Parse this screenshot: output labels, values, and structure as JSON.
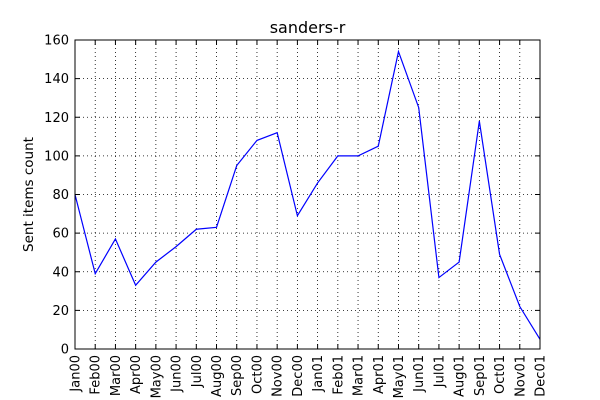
{
  "chart_data": {
    "type": "line",
    "title": "sanders-r",
    "xlabel": "",
    "ylabel": "Sent items count",
    "ylim": [
      0,
      160
    ],
    "yticks": [
      0,
      20,
      40,
      60,
      80,
      100,
      120,
      140,
      160
    ],
    "categories": [
      "Jan00",
      "Feb00",
      "Mar00",
      "Apr00",
      "May00",
      "Jun00",
      "Jul00",
      "Aug00",
      "Sep00",
      "Oct00",
      "Nov00",
      "Dec00",
      "Jan01",
      "Feb01",
      "Mar01",
      "Apr01",
      "May01",
      "Jun01",
      "Jul01",
      "Aug01",
      "Sep01",
      "Oct01",
      "Nov01",
      "Dec01"
    ],
    "series": [
      {
        "values": [
          80,
          39,
          57,
          33,
          45,
          53,
          62,
          63,
          95,
          108,
          112,
          69,
          86,
          100,
          100,
          105,
          154,
          125,
          37,
          45,
          118,
          49,
          22,
          5
        ],
        "color": "#0000ff"
      }
    ],
    "grid": true,
    "grid_style": "dotted",
    "legend": "none"
  }
}
